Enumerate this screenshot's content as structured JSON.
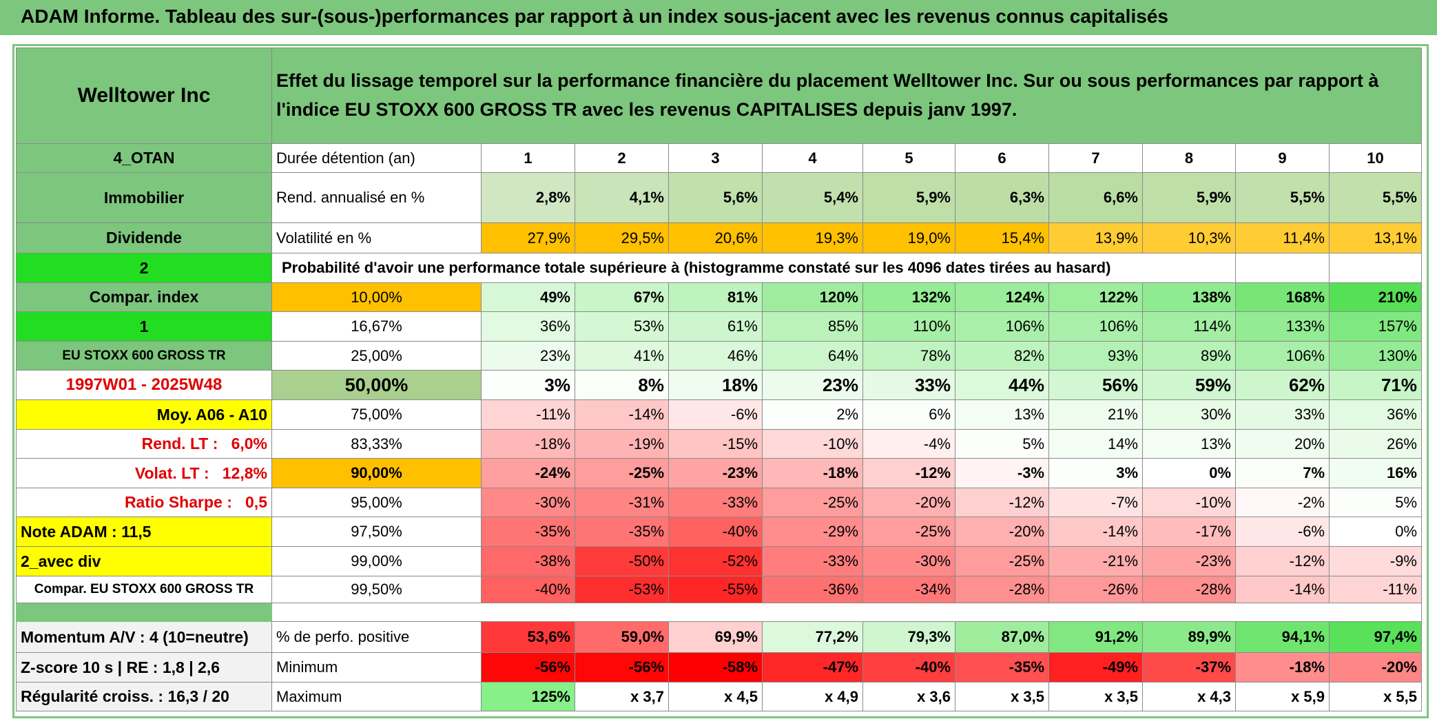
{
  "title": "ADAM Informe. Tableau des sur-(sous-)performances par rapport à un index sous-jacent avec les revenus connus capitalisés",
  "header": {
    "name": "Welltower Inc",
    "description": "Effet du lissage temporel sur la performance financière du placement Welltower Inc. Sur ou sous performances par rapport à l'indice EU STOXX 600 GROSS TR avec les revenus CAPITALISES depuis janv 1997."
  },
  "rows": [
    [
      "4_OTAN",
      "Durée détention (an)",
      "1",
      "2",
      "3",
      "4",
      "5",
      "6",
      "7",
      "8",
      "9",
      "10"
    ],
    [
      "Immobilier",
      "Rend. annualisé en %",
      "2,8%",
      "4,1%",
      "5,6%",
      "5,4%",
      "5,9%",
      "6,3%",
      "6,6%",
      "5,9%",
      "5,5%",
      "5,5%"
    ],
    [
      "Dividende",
      "Volatilité en %",
      "27,9%",
      "29,5%",
      "20,6%",
      "19,3%",
      "19,0%",
      "15,4%",
      "13,9%",
      "10,3%",
      "11,4%",
      "13,1%"
    ],
    [
      "2",
      "Probabilité d'avoir une performance totale supérieure à (histogramme constaté sur les 4096 dates tirées au hasard)"
    ],
    [
      "Compar. index",
      "10,00%",
      "49%",
      "67%",
      "81%",
      "120%",
      "132%",
      "124%",
      "122%",
      "138%",
      "168%",
      "210%"
    ],
    [
      "1",
      "16,67%",
      "36%",
      "53%",
      "61%",
      "85%",
      "110%",
      "106%",
      "106%",
      "114%",
      "133%",
      "157%"
    ],
    [
      "EU STOXX 600 GROSS TR",
      "25,00%",
      "23%",
      "41%",
      "46%",
      "64%",
      "78%",
      "82%",
      "93%",
      "89%",
      "106%",
      "130%"
    ],
    [
      "1997W01 - 2025W48",
      "50,00%",
      "3%",
      "8%",
      "18%",
      "23%",
      "33%",
      "44%",
      "56%",
      "59%",
      "62%",
      "71%"
    ],
    [
      "Moy. A06 - A10",
      "75,00%",
      "-11%",
      "-14%",
      "-6%",
      "2%",
      "6%",
      "13%",
      "21%",
      "30%",
      "33%",
      "36%"
    ],
    [
      "Rend. LT :   6,0%",
      "83,33%",
      "-18%",
      "-19%",
      "-15%",
      "-10%",
      "-4%",
      "5%",
      "14%",
      "13%",
      "20%",
      "26%"
    ],
    [
      "Volat. LT :   12,8%",
      "90,00%",
      "-24%",
      "-25%",
      "-23%",
      "-18%",
      "-12%",
      "-3%",
      "3%",
      "0%",
      "7%",
      "16%"
    ],
    [
      "Ratio Sharpe :   0,5",
      "95,00%",
      "-30%",
      "-31%",
      "-33%",
      "-25%",
      "-20%",
      "-12%",
      "-7%",
      "-10%",
      "-2%",
      "5%"
    ],
    [
      "Note ADAM : 11,5",
      "97,50%",
      "-35%",
      "-35%",
      "-40%",
      "-29%",
      "-25%",
      "-20%",
      "-14%",
      "-17%",
      "-6%",
      "0%"
    ],
    [
      "2_avec div",
      "99,00%",
      "-38%",
      "-50%",
      "-52%",
      "-33%",
      "-30%",
      "-25%",
      "-21%",
      "-23%",
      "-12%",
      "-9%"
    ],
    [
      "Compar. EU STOXX 600 GROSS TR",
      "99,50%",
      "-40%",
      "-53%",
      "-55%",
      "-36%",
      "-34%",
      "-28%",
      "-26%",
      "-28%",
      "-14%",
      "-11%"
    ],
    [
      "Momentum A/V : 4 (10=neutre)",
      "% de perfo. positive",
      "53,6%",
      "59,0%",
      "69,9%",
      "77,2%",
      "79,3%",
      "87,0%",
      "91,2%",
      "89,9%",
      "94,1%",
      "97,4%"
    ],
    [
      "Z-score 10 s | RE : 1,8 | 2,6",
      "Minimum",
      "-56%",
      "-56%",
      "-58%",
      "-47%",
      "-40%",
      "-35%",
      "-49%",
      "-37%",
      "-18%",
      "-20%"
    ],
    [
      "Régularité croiss. : 16,3 / 20",
      "Maximum",
      "125%",
      "x 3,7",
      "x 4,5",
      "x 4,9",
      "x 3,6",
      "x 3,5",
      "x 3,5",
      "x 4,3",
      "x 5,9",
      "x 5,5"
    ]
  ]
}
